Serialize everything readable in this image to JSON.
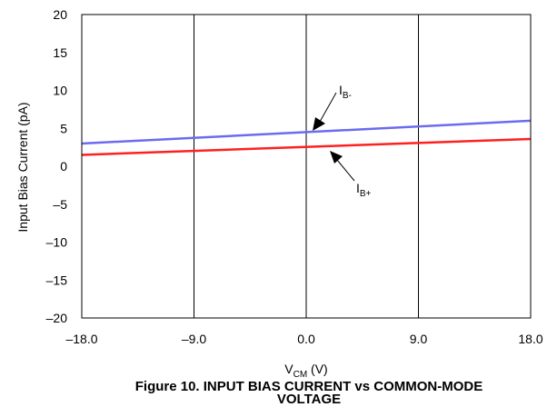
{
  "chart_data": {
    "type": "line",
    "x_ticks": [
      "–18.0",
      "–9.0",
      "0.0",
      "9.0",
      "18.0"
    ],
    "y_ticks": [
      "–20",
      "–15",
      "–10",
      "–5",
      "0",
      "5",
      "10",
      "15",
      "20"
    ],
    "xlim": [
      -18,
      18
    ],
    "ylim": [
      -20,
      20
    ],
    "grid": true,
    "xlabel": {
      "main": "V",
      "sub": "CM",
      "suffix": " (V)"
    },
    "ylabel": "Input Bias Current (pA)",
    "series": [
      {
        "name": "I",
        "name_sub": "B-",
        "color": "#6b6bf0",
        "x": [
          -18,
          18
        ],
        "y": [
          3.0,
          6.0
        ]
      },
      {
        "name": "I",
        "name_sub": "B+",
        "color": "#ff2020",
        "x": [
          -18,
          18
        ],
        "y": [
          1.5,
          3.6
        ]
      }
    ]
  },
  "caption": {
    "line1": "Figure 10. INPUT BIAS CURRENT vs COMMON-MODE",
    "line2": "VOLTAGE"
  }
}
